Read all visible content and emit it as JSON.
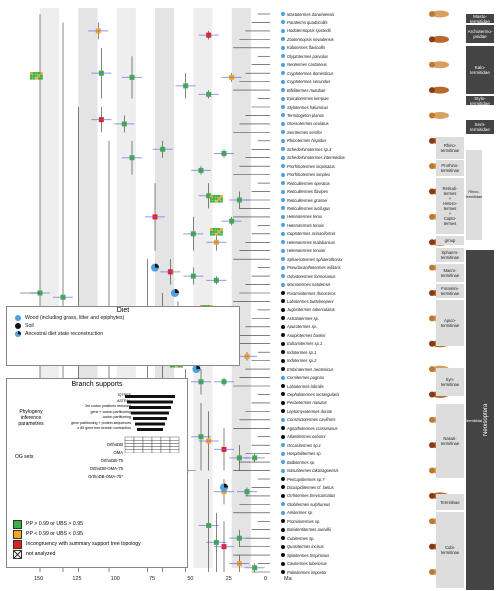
{
  "taxa": [
    {
      "name": "Mastotermes darwiniensis",
      "diet": "wood"
    },
    {
      "name": "Paraterms quadricollis",
      "diet": "wood"
    },
    {
      "name": "Hodotermopsis sjostedti",
      "diet": "wood"
    },
    {
      "name": "Zootermopsis nevadensis",
      "diet": "wood"
    },
    {
      "name": "Kalotermes flavicollis",
      "diet": "wood"
    },
    {
      "name": "Glyptotermes parvulus",
      "diet": "wood"
    },
    {
      "name": "Neotermes castaneus",
      "diet": "wood"
    },
    {
      "name": "Cryptotermes domesticus",
      "diet": "wood"
    },
    {
      "name": "Cryptotermes secundus",
      "diet": "wood"
    },
    {
      "name": "Bifiditermes mutubae",
      "diet": "wood"
    },
    {
      "name": "Epicalotermes kempae",
      "diet": "wood"
    },
    {
      "name": "Stylotermes halumicus",
      "diet": "wood"
    },
    {
      "name": "Termitogeton planus",
      "diet": "wood"
    },
    {
      "name": "Glossotermes oculatus",
      "diet": "wood"
    },
    {
      "name": "Serritermes serrifer",
      "diet": "wood"
    },
    {
      "name": "Rhinotermes hispidus",
      "diet": "wood"
    },
    {
      "name": "Schedorhinotermes sp.4",
      "diet": "wood"
    },
    {
      "name": "Schedorhinotermes intermedius",
      "diet": "wood"
    },
    {
      "name": "Prorhinotermes inopinatus",
      "diet": "wood"
    },
    {
      "name": "Prorhinotermes simplex",
      "diet": "wood"
    },
    {
      "name": "Reticulitermes speratus",
      "diet": "wood"
    },
    {
      "name": "Reticulitermes flavipes",
      "diet": "wood"
    },
    {
      "name": "Reticulitermes grassei",
      "diet": "wood"
    },
    {
      "name": "Reticulitermes lucifugus",
      "diet": "wood"
    },
    {
      "name": "Heterotermes ferox",
      "diet": "wood"
    },
    {
      "name": "Heterotermes tenuis",
      "diet": "wood"
    },
    {
      "name": "Coptotermes acinaciformis",
      "diet": "wood"
    },
    {
      "name": "Heterotermes malabaricus",
      "diet": "wood"
    },
    {
      "name": "Heterotermes tenuior",
      "diet": "wood"
    },
    {
      "name": "Sphaerotermes sphaerothorax",
      "diet": "wood"
    },
    {
      "name": "Pseudacanthotermes militaris",
      "diet": "wood"
    },
    {
      "name": "Odontotermes formosanus",
      "diet": "wood"
    },
    {
      "name": "Macrotermes natalensis",
      "diet": "wood"
    },
    {
      "name": "Foraminitermes rhinoceros",
      "diet": "soil"
    },
    {
      "name": "Labritermes buttelreepeni",
      "diet": "soil"
    },
    {
      "name": "Jugositermes tuberculatus",
      "diet": "soil"
    },
    {
      "name": "Astratotermes sp.",
      "diet": "soil"
    },
    {
      "name": "Apurotermes sp.",
      "diet": "soil"
    },
    {
      "name": "Anoplotermes banksi",
      "diet": "soil"
    },
    {
      "name": "Euhamitermes sp.1",
      "diet": "soil"
    },
    {
      "name": "Indotermes sp.1",
      "diet": "soil"
    },
    {
      "name": "Indotermes sp.2",
      "diet": "soil"
    },
    {
      "name": "Embiratermes neotenicus",
      "diet": "soil"
    },
    {
      "name": "Cornitermes pugnax",
      "diet": "wood"
    },
    {
      "name": "Labiotermes labralis",
      "diet": "soil"
    },
    {
      "name": "Cephalotermes rectangularis",
      "diet": "soil"
    },
    {
      "name": "Periaetermes nasutus",
      "diet": "soil"
    },
    {
      "name": "Leptomyxotermes doriae",
      "diet": "soil"
    },
    {
      "name": "Constrictotermes cavifrons",
      "diet": "wood"
    },
    {
      "name": "Agnathotermes crassinasus",
      "diet": "soil"
    },
    {
      "name": "Atlantitermes osborni",
      "diet": "soil"
    },
    {
      "name": "Occasitermes sp.1",
      "diet": "wood"
    },
    {
      "name": "Hospitalitermes sp.",
      "diet": "wood"
    },
    {
      "name": "Bulbitermes sp.",
      "diet": "wood"
    },
    {
      "name": "Nasutitermes takasagoensis",
      "diet": "wood"
    },
    {
      "name": "Pericapritermes sp.7",
      "diet": "soil"
    },
    {
      "name": "Dicuspiditermes cf. laetus",
      "diet": "soil"
    },
    {
      "name": "Orrhitermes brevicarinatus",
      "diet": "soil"
    },
    {
      "name": "Globitermes sulphureus",
      "diet": "wood"
    },
    {
      "name": "Amitermes sp.",
      "diet": "wood"
    },
    {
      "name": "Promirotermes sp.",
      "diet": "soil"
    },
    {
      "name": "Basidentitermes aurivillii",
      "diet": "soil"
    },
    {
      "name": "Cubitermes sp.",
      "diet": "soil"
    },
    {
      "name": "Quasitermes incisus",
      "diet": "soil"
    },
    {
      "name": "Spinitermes trispinosus",
      "diet": "soil"
    },
    {
      "name": "Cavitermes tuberosus",
      "diet": "soil"
    },
    {
      "name": "Palmitermes impostor",
      "diet": "soil"
    }
  ],
  "groups": [
    {
      "label": "Masto-\ntermitidae",
      "y": 14,
      "h": 9
    },
    {
      "label": "Archotermo-\npsidae",
      "y": 25,
      "h": 18
    },
    {
      "label": "Kalo-\ntermitidae",
      "y": 46,
      "h": 48
    },
    {
      "label": "Stylo-\ntermitidae",
      "y": 96,
      "h": 9
    },
    {
      "label": "Serri-\ntermitidae",
      "y": 120,
      "h": 14
    }
  ],
  "subgroups": [
    {
      "label": "Rhino-\ntermitinae",
      "y": 137,
      "h": 22
    },
    {
      "label": "Prorhino-\ntermitinae",
      "y": 160,
      "h": 16
    },
    {
      "label": "Reticuli-\ntermes\n+\nHetero-\ntermes\n+\nCopto-\ntermes",
      "y": 178,
      "h": 56
    },
    {
      "label": "group",
      "y": 236,
      "h": 9
    },
    {
      "label": "Sphaero-\ntermitinae",
      "y": 248,
      "h": 14
    },
    {
      "label": "Macro-\ntermitinae",
      "y": 264,
      "h": 18
    },
    {
      "label": "Foramini-\ntermitinae",
      "y": 284,
      "h": 14
    },
    {
      "label": "Apico-\ntermitinae",
      "y": 300,
      "h": 46
    },
    {
      "label": "Syn-\ntermitinae",
      "y": 368,
      "h": 28
    },
    {
      "label": "Nasuti-\ntermitinae",
      "y": 404,
      "h": 74
    },
    {
      "label": "Termitinae",
      "y": 494,
      "h": 16
    },
    {
      "label": "Cubi-\ntermitinae",
      "y": 512,
      "h": 76
    }
  ],
  "right_labels": {
    "rhino": "Rhino-\ntermitidae",
    "termitidae": "Termitidae",
    "neoptera": "Neoisoptera"
  },
  "axis": {
    "ticks": [
      "150",
      "125",
      "100",
      "75",
      "50",
      "25",
      "0"
    ],
    "unit": "Ma"
  },
  "diet_legend": {
    "title": "Diet",
    "items": [
      {
        "label": "Wood (including grass, litter and epiphytes)",
        "color": "#4aa3df"
      },
      {
        "label": "Soil",
        "color": "#111111"
      },
      {
        "label": "Ancestral diet state reconstruction",
        "color": "pie"
      }
    ]
  },
  "branch_legend": {
    "title": "Branch supports",
    "phylogeny_label": "Phylogeny\ninference\nparametres",
    "param_rows": [
      "IQTREE",
      "ASTRAL",
      "3rd codon positions removed",
      "gene + codon partitioning",
      "codon partitioning",
      "gene partitioning + protein sequences",
      "≥ 85 gene tree branch contraction"
    ],
    "og_label": "OG sets",
    "og_rows": [
      "OrthoDB",
      "OMA",
      "OrthoDB-75",
      "OrthoDB-OMA-75",
      "OrthoDB-OMA-75*"
    ],
    "support_items": [
      {
        "label": "PP > 0.99 or UBS > 0.95",
        "color": "#3cb043"
      },
      {
        "label": "PP < 0.99 or UBS < 0.95",
        "color": "#f5a623"
      },
      {
        "label": "Incongruency with summary support tree topology",
        "color": "#e02020"
      },
      {
        "label": "not analyzed",
        "color": "cross"
      }
    ]
  },
  "colors": {
    "wood": "#4aa3df",
    "soil": "#111111",
    "green": "#3cb043",
    "orange": "#f5a623",
    "red": "#e02020",
    "bar": "#6a6ae8"
  }
}
